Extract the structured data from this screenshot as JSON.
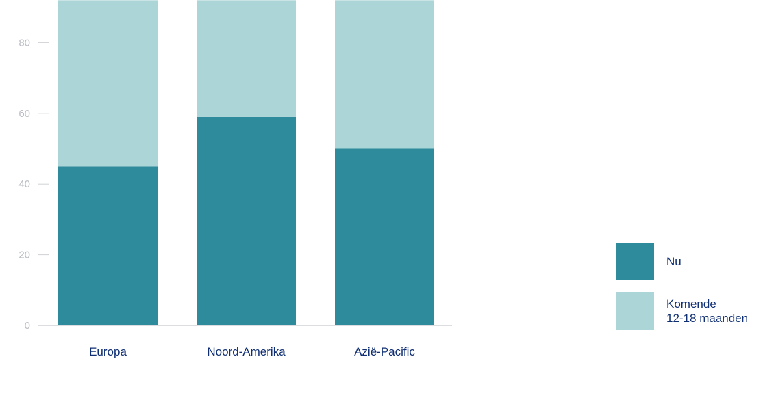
{
  "chart_data": {
    "type": "bar",
    "stacked": true,
    "categories": [
      "Europa",
      "Noord-Amerika",
      "Azië-Pacific"
    ],
    "series": [
      {
        "name": "Nu",
        "values": [
          45,
          59,
          50
        ],
        "color": "#2d8b9c"
      },
      {
        "name": "Komende\n12-18 maanden",
        "values": [
          47,
          33,
          42
        ],
        "color": "#acd5d7"
      }
    ],
    "yticks": [
      0,
      20,
      40,
      60,
      80
    ],
    "ylim": [
      0,
      92
    ],
    "grid": false,
    "legend_position": "right"
  }
}
